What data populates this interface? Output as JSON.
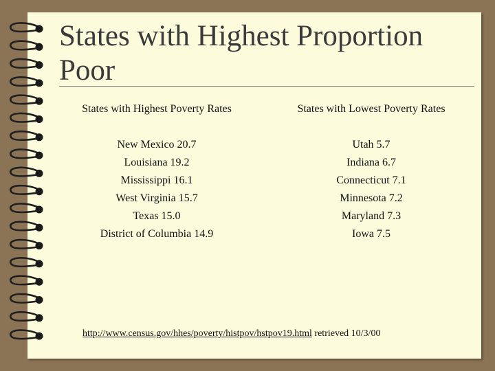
{
  "slide": {
    "title_line1": "States with Highest Proportion",
    "title_line2": "Poor",
    "left_column": {
      "heading": "States with Highest Poverty Rates",
      "items": [
        "New Mexico 20.7",
        "Louisiana 19.2",
        "Mississippi 16.1",
        "West Virginia 15.7",
        "Texas 15.0",
        "District of Columbia 14.9"
      ]
    },
    "right_column": {
      "heading": "States with Lowest Poverty Rates",
      "items": [
        "Utah 5.7",
        "Indiana 6.7",
        "Connecticut 7.1",
        "Minnesota 7.2",
        "Maryland 7.3",
        "Iowa 7.5"
      ]
    },
    "source": {
      "link_text": "http://www.census.gov/hhes/poverty/histpov/hstpov19.html",
      "suffix": " retrieved 10/3/00"
    }
  }
}
